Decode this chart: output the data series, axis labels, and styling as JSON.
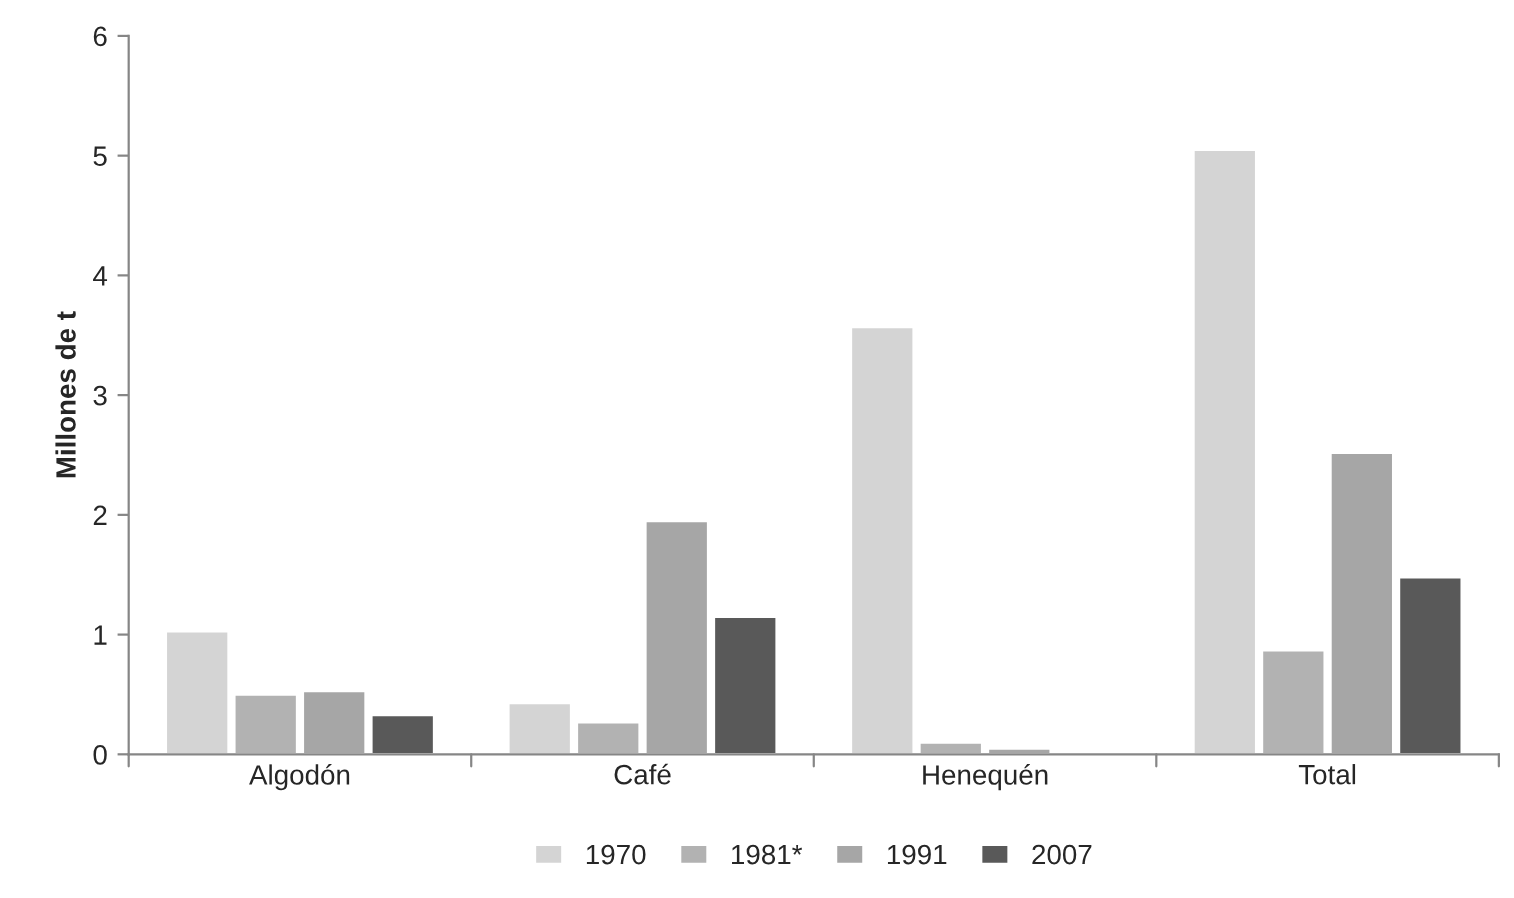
{
  "chart_data": {
    "type": "bar",
    "ylabel": "Millones de t",
    "categories": [
      "Algodón",
      "Café",
      "Henequén",
      "Total"
    ],
    "series": [
      {
        "name": "1970",
        "color": "#d4d4d4",
        "values": [
          1.03,
          0.43,
          3.57,
          5.05
        ]
      },
      {
        "name": "1981*",
        "color": "#b2b2b2",
        "values": [
          0.5,
          0.27,
          0.1,
          0.87
        ]
      },
      {
        "name": "1991",
        "color": "#a6a6a6",
        "values": [
          0.53,
          1.95,
          0.05,
          2.52
        ]
      },
      {
        "name": "2007",
        "color": "#595959",
        "values": [
          0.33,
          1.15,
          0.01,
          1.48
        ]
      }
    ],
    "ylim": [
      0,
      6
    ],
    "yticks": [
      0,
      1,
      2,
      3,
      4,
      5,
      6
    ],
    "grid": false,
    "legend": "bottom"
  }
}
